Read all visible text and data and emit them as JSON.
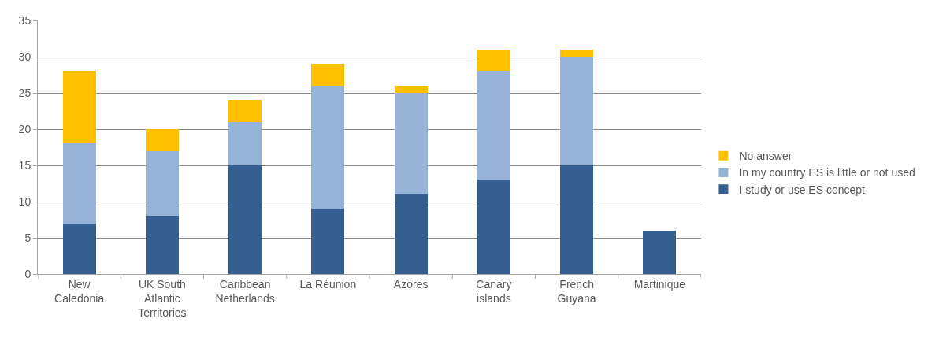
{
  "chart_data": {
    "type": "bar",
    "stacked": true,
    "categories": [
      "New Caledonia",
      "UK South Atlantic Territories",
      "Caribbean Netherlands",
      "La Réunion",
      "Azores",
      "Canary islands",
      "French Guyana",
      "Martinique"
    ],
    "series": [
      {
        "name": "I study or use ES concept",
        "color": "#365f91",
        "values": [
          7,
          8,
          15,
          9,
          11,
          13,
          15,
          6
        ]
      },
      {
        "name": "In my country ES is little or not used",
        "color": "#95b3d7",
        "values": [
          11,
          9,
          6,
          17,
          14,
          15,
          15,
          0
        ]
      },
      {
        "name": "No answer",
        "color": "#ffc000",
        "values": [
          10,
          3,
          3,
          3,
          1,
          3,
          1,
          0
        ]
      }
    ],
    "ylim": [
      0,
      35
    ],
    "yticks": [
      0,
      5,
      10,
      15,
      20,
      25,
      30,
      35
    ],
    "grid": "y",
    "legend": "right"
  }
}
